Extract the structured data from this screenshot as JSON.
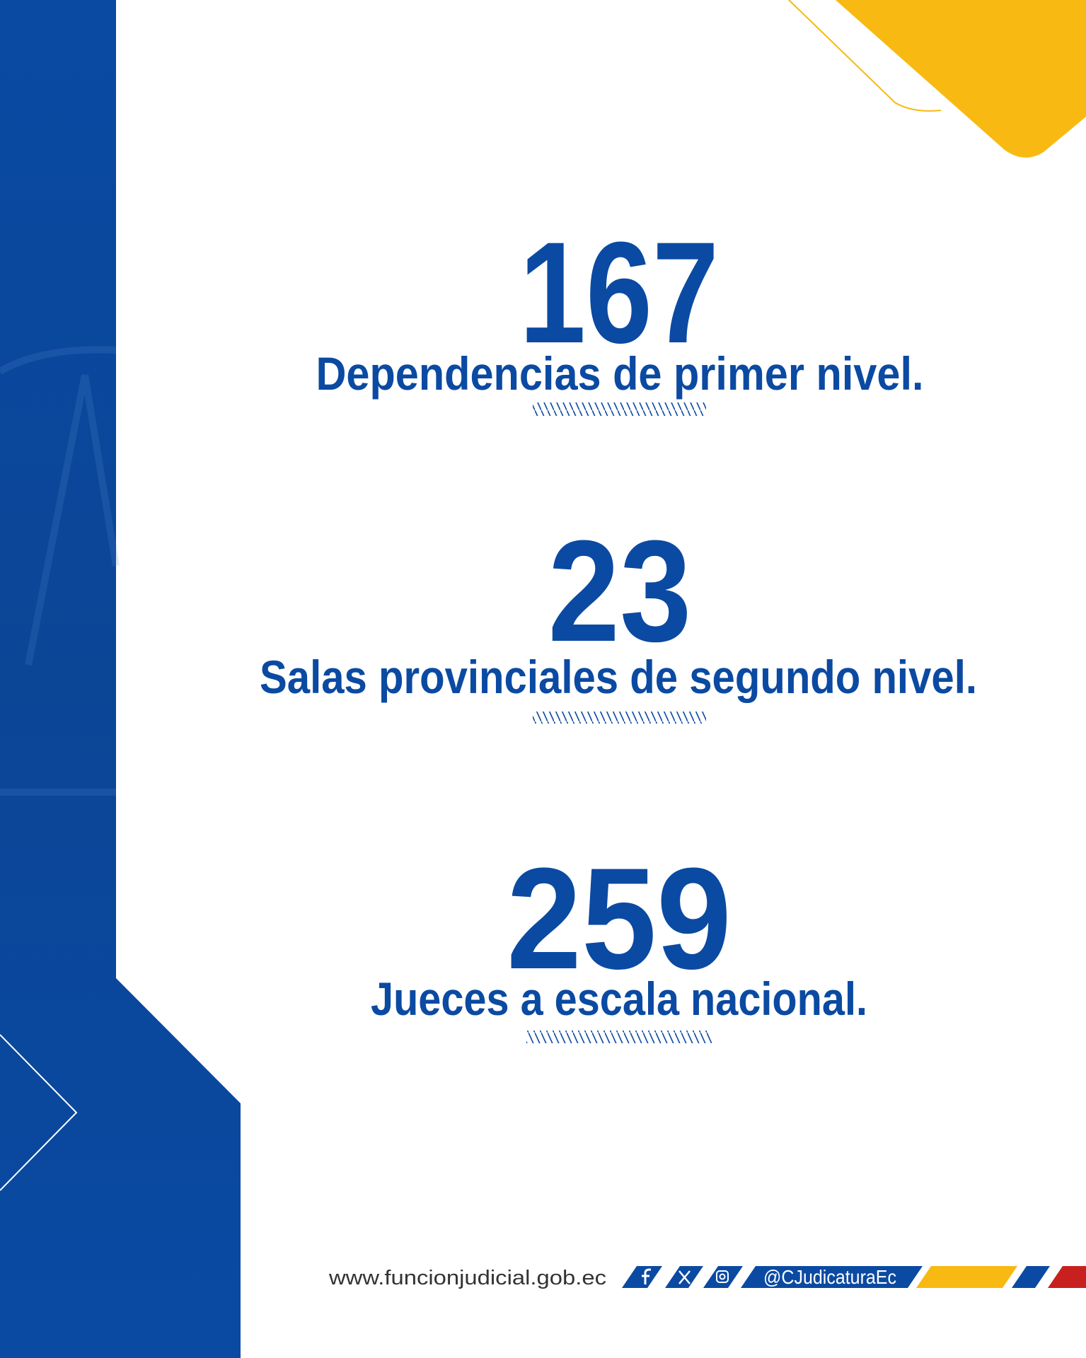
{
  "stats": [
    {
      "number": 167,
      "label": "Dependencias de primer nivel."
    },
    {
      "number": 23,
      "label": "Salas provinciales de segundo nivel."
    },
    {
      "number": 259,
      "label": "Jueces a escala nacional."
    }
  ],
  "footer": {
    "website": "www.funcionjudicial.gob.ec",
    "handle": "@CJudicaturaEc"
  }
}
